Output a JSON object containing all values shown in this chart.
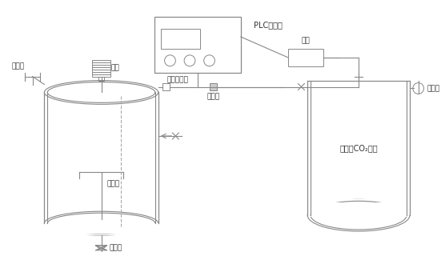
{
  "bg_color": "#ffffff",
  "line_color": "#888888",
  "text_color": "#333333",
  "fig_width": 5.51,
  "fig_height": 3.4,
  "labels": {
    "motor": "电机",
    "feed_port": "投料口",
    "micro_pressure_sensor": "微压传感器",
    "solenoid_valve": "电磁阀",
    "stirrer": "搅拌桨",
    "bottom_valve": "卸底阀",
    "plc": "PLC控制箱",
    "power_supply": "电源",
    "pressure_gauge": "压力表",
    "co2_tank": "高纯度CO₂储罐"
  }
}
